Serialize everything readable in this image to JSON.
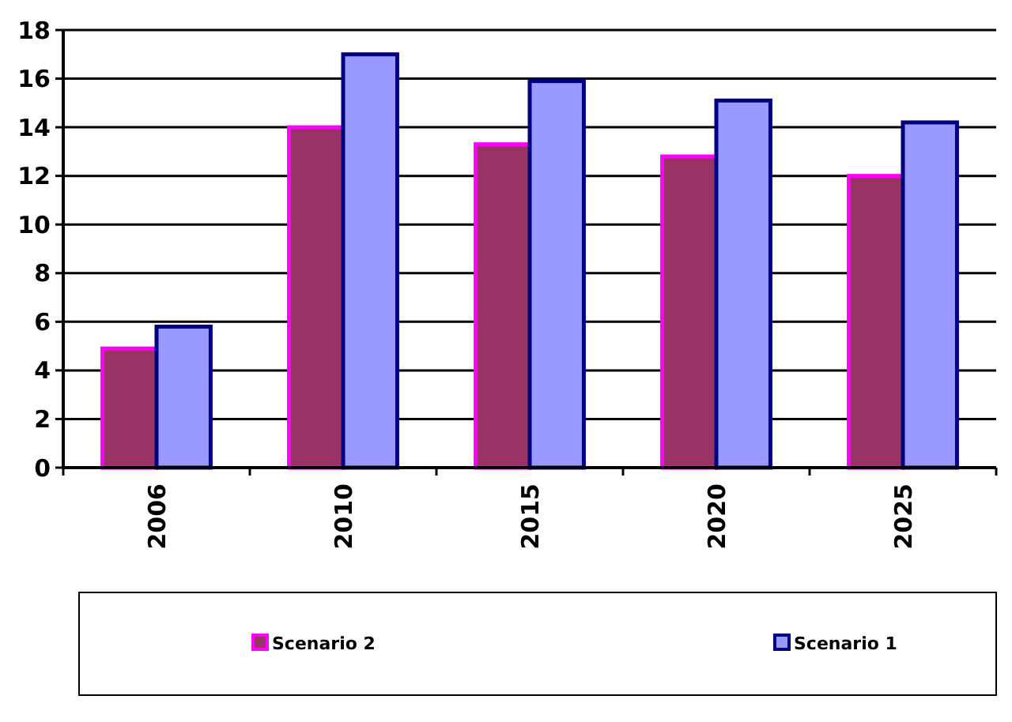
{
  "chart_data": {
    "type": "bar",
    "categories": [
      "2006",
      "2010",
      "2015",
      "2020",
      "2025"
    ],
    "series": [
      {
        "name": "Scenario 2",
        "color": "#993366",
        "values": [
          4.9,
          14,
          13.3,
          12.8,
          12
        ]
      },
      {
        "name": "Scenario 1",
        "color": "#9999ff",
        "values": [
          5.8,
          17,
          15.9,
          15.1,
          14.2
        ]
      }
    ],
    "ylim": [
      0,
      18
    ],
    "yticks": [
      0,
      2,
      4,
      6,
      8,
      10,
      12,
      14,
      16,
      18
    ],
    "grid": "y",
    "legend": "bottom"
  }
}
